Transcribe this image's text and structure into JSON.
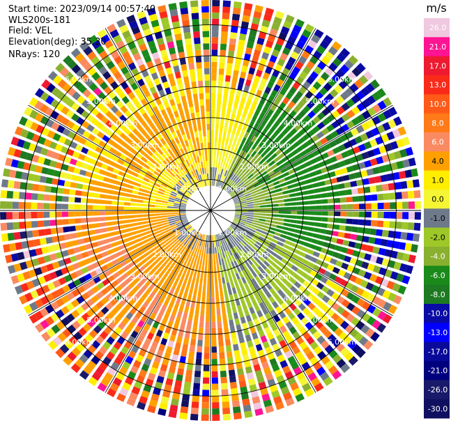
{
  "header": {
    "start_time_label": "Start time:",
    "start_time": "2023/09/14 00:57:40",
    "instrument": "WLS200s-181",
    "field_label": "Field:",
    "field": "VEL",
    "elevation_label": "Elevation(deg):",
    "elevation": "35.30",
    "nrays_label": "NRays:",
    "nrays": "120"
  },
  "chart_data": {
    "type": "heatmap",
    "projection": "polar-ppi",
    "title": "",
    "field": "VEL",
    "units": "m/s",
    "n_rays": 120,
    "range_rings_km": [
      1,
      2,
      3,
      4,
      5,
      6
    ],
    "range_labels": [
      "1.00km",
      "2.00km",
      "3.00km",
      "4.00km",
      "5.00km",
      "6.00km"
    ],
    "max_range_km": 6.8,
    "spokes_deg": [
      0,
      30,
      60,
      90,
      120,
      150,
      180,
      210,
      240,
      270,
      300,
      330
    ],
    "colorbar": {
      "label": "m/s",
      "ticks": [
        "26.0",
        "21.0",
        "17.0",
        "13.0",
        "10.0",
        "8.0",
        "6.0",
        "4.0",
        "1.0",
        "0.0",
        "-1.0",
        "-2.0",
        "-4.0",
        "-6.0",
        "-8.0",
        "-10.0",
        "-13.0",
        "-17.0",
        "-21.0",
        "-26.0",
        "-30.0"
      ],
      "colors": [
        "#f0c8e0",
        "#ff1493",
        "#ee1a30",
        "#fa2a1a",
        "#ff5a18",
        "#ff7a18",
        "#fa8a62",
        "#ffa000",
        "#ffee00",
        "#f5f534",
        "#6e7a8a",
        "#9ec828",
        "#8ab030",
        "#1a8a1a",
        "#1e7a22",
        "#0a0aa5",
        "#0000ff",
        "#0a0a9a",
        "#00007f",
        "#1a1a6a",
        "#101060"
      ]
    },
    "velocity_sectors": [
      {
        "from_deg": 0,
        "to_deg": 25,
        "inner_km": -0.8,
        "mid_km": 1.0,
        "outer_km": 4.5
      },
      {
        "from_deg": 25,
        "to_deg": 110,
        "inner_km": -3.0,
        "mid_km": -6.0,
        "outer_km": -8.0
      },
      {
        "from_deg": 110,
        "to_deg": 170,
        "inner_km": -1.0,
        "mid_km": -2.0,
        "outer_km": 4.0
      },
      {
        "from_deg": 170,
        "to_deg": 270,
        "inner_km": 2.0,
        "mid_km": 5.0,
        "outer_km": 8.0
      },
      {
        "from_deg": 270,
        "to_deg": 360,
        "inner_km": 1.5,
        "mid_km": 3.0,
        "outer_km": -2.0
      }
    ]
  }
}
